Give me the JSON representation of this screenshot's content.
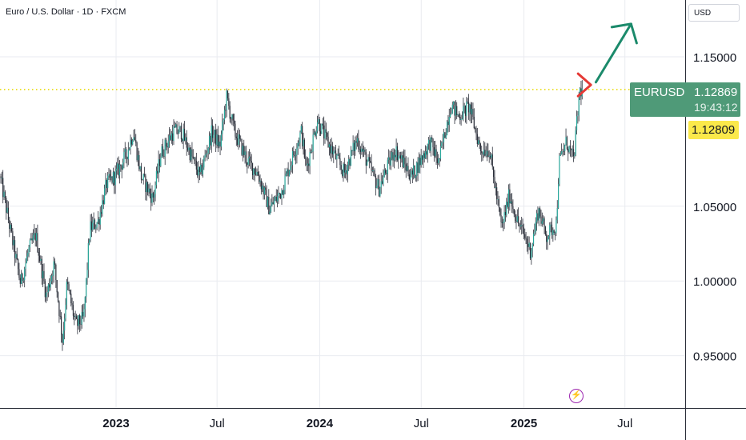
{
  "header": {
    "title": "Euro / U.S. Dollar · 1D · FXCM",
    "currency": "USD"
  },
  "symbol_tag": {
    "name": "EURUSD",
    "price": "1.12869",
    "countdown": "19:43:12"
  },
  "level_tag": {
    "value": "1.12809"
  },
  "colors": {
    "up": "#26a69a",
    "down": "#ef5350",
    "candle": "#2a2e39",
    "level_line": "#e8d900",
    "red_arrow": "#e53935",
    "green_arrow": "#1b8a6b",
    "grid": "#e9ebf0",
    "tag_green": "#4f9a78",
    "tag_yellow": "#fbe94a"
  },
  "icons": {
    "bolt": "lightning-bolt-icon"
  },
  "chart_data": {
    "type": "candlestick",
    "title": "Euro / U.S. Dollar · 1D · FXCM",
    "ylim": [
      0.915,
      1.188
    ],
    "xlim": [
      "2022-06-07",
      "2025-10-17"
    ],
    "yticks": [
      "1.15000",
      "1.05000",
      "1.00000",
      "0.95000"
    ],
    "xticks": [
      {
        "date": "2023-01-01",
        "label": "2023",
        "bold": true
      },
      {
        "date": "2023-07-01",
        "label": "Jul",
        "bold": false
      },
      {
        "date": "2024-01-01",
        "label": "2024",
        "bold": true
      },
      {
        "date": "2024-07-01",
        "label": "Jul",
        "bold": false
      },
      {
        "date": "2025-01-01",
        "label": "2025",
        "bold": true
      },
      {
        "date": "2025-07-01",
        "label": "Jul",
        "bold": false
      }
    ],
    "grid": true,
    "horizontal_level": 1.12809,
    "last_price": 1.12869,
    "price_path": [
      [
        "2022-06-07",
        1.07
      ],
      [
        "2022-06-20",
        1.045
      ],
      [
        "2022-07-14",
        0.998
      ],
      [
        "2022-07-28",
        1.02
      ],
      [
        "2022-08-10",
        1.031
      ],
      [
        "2022-08-29",
        0.99
      ],
      [
        "2022-09-12",
        1.012
      ],
      [
        "2022-09-27",
        0.96
      ],
      [
        "2022-10-05",
        0.998
      ],
      [
        "2022-10-21",
        0.97
      ],
      [
        "2022-11-04",
        0.975
      ],
      [
        "2022-11-15",
        1.035
      ],
      [
        "2022-11-30",
        1.04
      ],
      [
        "2022-12-15",
        1.065
      ],
      [
        "2022-12-30",
        1.07
      ],
      [
        "2023-01-20",
        1.085
      ],
      [
        "2023-02-01",
        1.1
      ],
      [
        "2023-02-15",
        1.07
      ],
      [
        "2023-03-08",
        1.055
      ],
      [
        "2023-03-22",
        1.085
      ],
      [
        "2023-04-14",
        1.1
      ],
      [
        "2023-04-28",
        1.1
      ],
      [
        "2023-05-31",
        1.07
      ],
      [
        "2023-06-22",
        1.1
      ],
      [
        "2023-07-06",
        1.09
      ],
      [
        "2023-07-18",
        1.123
      ],
      [
        "2023-08-01",
        1.1
      ],
      [
        "2023-08-25",
        1.08
      ],
      [
        "2023-09-12",
        1.072
      ],
      [
        "2023-10-03",
        1.048
      ],
      [
        "2023-10-24",
        1.06
      ],
      [
        "2023-11-15",
        1.085
      ],
      [
        "2023-11-29",
        1.1
      ],
      [
        "2023-12-08",
        1.075
      ],
      [
        "2023-12-28",
        1.108
      ],
      [
        "2024-01-12",
        1.095
      ],
      [
        "2024-02-14",
        1.072
      ],
      [
        "2024-03-08",
        1.095
      ],
      [
        "2024-04-16",
        1.062
      ],
      [
        "2024-05-15",
        1.088
      ],
      [
        "2024-06-14",
        1.07
      ],
      [
        "2024-07-17",
        1.093
      ],
      [
        "2024-08-01",
        1.079
      ],
      [
        "2024-08-23",
        1.118
      ],
      [
        "2024-09-06",
        1.11
      ],
      [
        "2024-09-25",
        1.117
      ],
      [
        "2024-10-15",
        1.088
      ],
      [
        "2024-10-31",
        1.088
      ],
      [
        "2024-11-22",
        1.035
      ],
      [
        "2024-12-06",
        1.058
      ],
      [
        "2024-12-20",
        1.04
      ],
      [
        "2025-01-02",
        1.03
      ],
      [
        "2025-01-13",
        1.02
      ],
      [
        "2025-01-27",
        1.048
      ],
      [
        "2025-02-10",
        1.03
      ],
      [
        "2025-02-28",
        1.038
      ],
      [
        "2025-03-05",
        1.079
      ],
      [
        "2025-03-18",
        1.093
      ],
      [
        "2025-03-31",
        1.081
      ],
      [
        "2025-04-11",
        1.127
      ],
      [
        "2025-04-17",
        1.12869
      ]
    ],
    "annotations": [
      {
        "type": "arrow",
        "color": "red",
        "direction": "right",
        "at": [
          "2025-05-01",
          1.128
        ]
      },
      {
        "type": "arrow",
        "color": "green",
        "direction": "up-right",
        "from": [
          "2025-05-10",
          1.133
        ],
        "to": [
          "2025-07-12",
          1.172
        ]
      }
    ]
  }
}
